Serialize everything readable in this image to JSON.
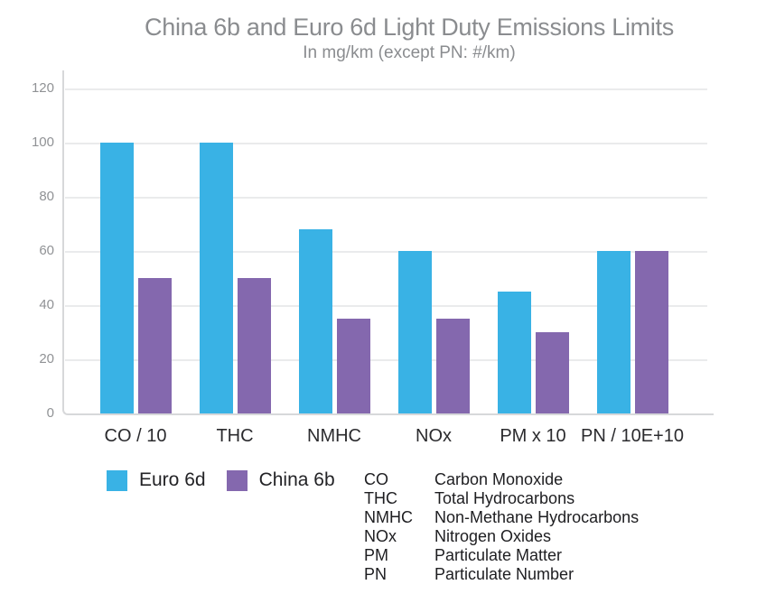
{
  "chart": {
    "title": "China 6b and Euro 6d Light Duty Emissions Limits",
    "subtitle": "In mg/km (except PN: #/km)"
  },
  "chart_data": {
    "type": "bar",
    "categories": [
      "CO / 10",
      "THC",
      "NMHC",
      "NOx",
      "PM x 10",
      "PN / 10E+10"
    ],
    "series": [
      {
        "name": "Euro 6d",
        "color": "#39B2E5",
        "values": [
          100,
          100,
          68,
          60,
          45,
          60
        ]
      },
      {
        "name": "China 6b",
        "color": "#8468AE",
        "values": [
          50,
          50,
          35,
          35,
          30,
          60
        ]
      }
    ],
    "ylim": [
      0,
      120
    ],
    "yticks": [
      0,
      20,
      40,
      60,
      80,
      100,
      120
    ],
    "grid": "horizontal",
    "legend_position": "bottom-left",
    "colors": {
      "gridline": "#EAEBEC",
      "axis_frame": "#D7D8DA",
      "title_text": "#8A8C8F",
      "tick_text": "#909295",
      "label_text": "#2B2B2E"
    }
  },
  "key": {
    "rows": [
      {
        "abbr": "CO",
        "definition": "Carbon Monoxide"
      },
      {
        "abbr": "THC",
        "definition": "Total Hydrocarbons"
      },
      {
        "abbr": "NMHC",
        "definition": "Non-Methane Hydrocarbons"
      },
      {
        "abbr": "NOx",
        "definition": "Nitrogen Oxides"
      },
      {
        "abbr": "PM",
        "definition": "Particulate Matter"
      },
      {
        "abbr": "PN",
        "definition": "Particulate Number"
      }
    ]
  }
}
